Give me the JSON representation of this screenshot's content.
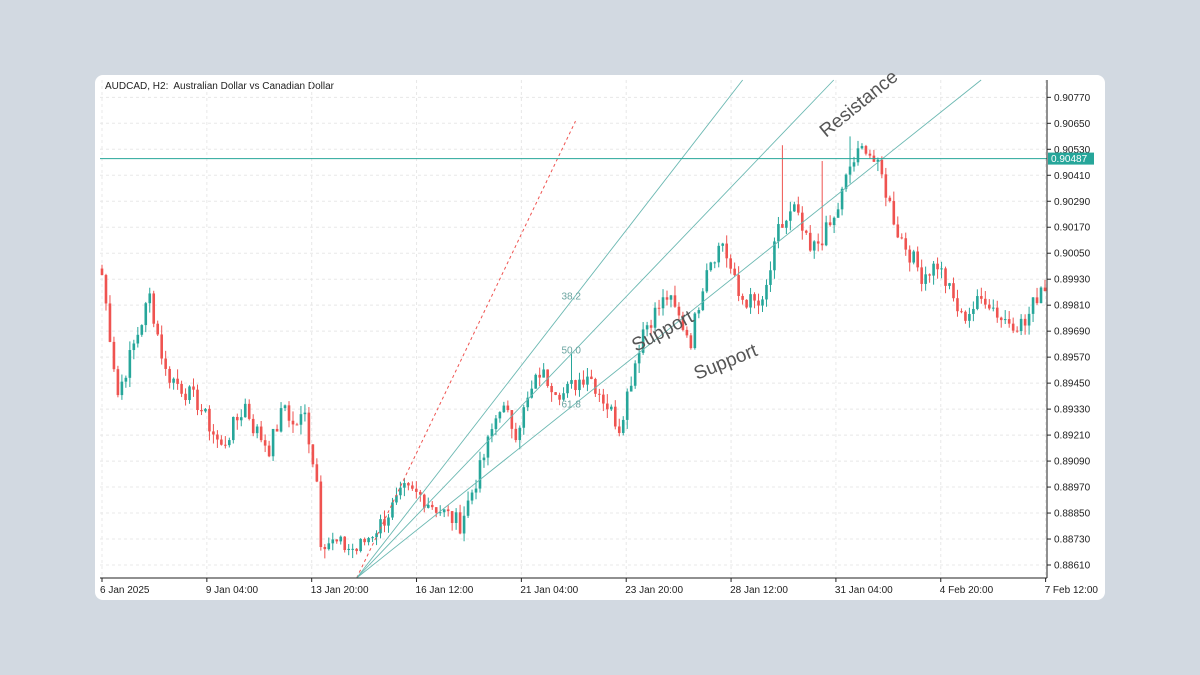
{
  "header": {
    "title": "AUDCAD, H2:  Australian Dollar vs Canadian Dollar"
  },
  "colors": {
    "up": "#26a69a",
    "down": "#ef5350",
    "line": "#6bb8b2",
    "grid": "#e8e8e8",
    "fan_guide": "#ef5350",
    "price_tag": "#26a69a"
  },
  "chart_data": {
    "type": "candlestick",
    "symbol": "AUDCAD",
    "timeframe": "H2",
    "title": "AUDCAD, H2:  Australian Dollar vs Canadian Dollar",
    "ylim": [
      0.8855,
      0.9085
    ],
    "y_ticks": [
      "0.90770",
      "0.90650",
      "0.90530",
      "0.90410",
      "0.90290",
      "0.90170",
      "0.90050",
      "0.89930",
      "0.89810",
      "0.89690",
      "0.89570",
      "0.89450",
      "0.89330",
      "0.89210",
      "0.89090",
      "0.88970",
      "0.88850",
      "0.88730",
      "0.88610"
    ],
    "x_ticks": [
      "6 Jan 2025",
      "9 Jan 04:00",
      "13 Jan 20:00",
      "16 Jan 12:00",
      "21 Jan 04:00",
      "23 Jan 20:00",
      "28 Jan 12:00",
      "31 Jan 04:00",
      "4 Feb 20:00",
      "7 Feb 12:00"
    ],
    "current_price": "0.90487",
    "bars": 238,
    "anchors": [
      [
        0,
        0.8995
      ],
      [
        4,
        0.894
      ],
      [
        12,
        0.8985
      ],
      [
        16,
        0.895
      ],
      [
        24,
        0.8936
      ],
      [
        30,
        0.8915
      ],
      [
        36,
        0.8935
      ],
      [
        38,
        0.8925
      ],
      [
        42,
        0.8915
      ],
      [
        46,
        0.8935
      ],
      [
        48,
        0.8925
      ],
      [
        51,
        0.893
      ],
      [
        54,
        0.89
      ],
      [
        55,
        0.8873
      ],
      [
        60,
        0.887
      ],
      [
        64,
        0.8868
      ],
      [
        70,
        0.888
      ],
      [
        76,
        0.8895
      ],
      [
        80,
        0.8893
      ],
      [
        86,
        0.8885
      ],
      [
        90,
        0.888
      ],
      [
        95,
        0.8905
      ],
      [
        100,
        0.8935
      ],
      [
        104,
        0.8923
      ],
      [
        110,
        0.895
      ],
      [
        116,
        0.894
      ],
      [
        122,
        0.895
      ],
      [
        126,
        0.8938
      ],
      [
        130,
        0.8925
      ],
      [
        136,
        0.897
      ],
      [
        142,
        0.8985
      ],
      [
        148,
        0.8965
      ],
      [
        152,
        0.9
      ],
      [
        156,
        0.901
      ],
      [
        160,
        0.8985
      ],
      [
        166,
        0.898
      ],
      [
        170,
        0.9015
      ],
      [
        174,
        0.9025
      ],
      [
        178,
        0.9005
      ],
      [
        184,
        0.902
      ],
      [
        188,
        0.9045
      ],
      [
        192,
        0.9055
      ],
      [
        196,
        0.904
      ],
      [
        200,
        0.9015
      ],
      [
        206,
        0.8995
      ],
      [
        210,
        0.9
      ],
      [
        216,
        0.8975
      ],
      [
        222,
        0.8985
      ],
      [
        226,
        0.8975
      ],
      [
        232,
        0.8972
      ],
      [
        236,
        0.899
      ]
    ],
    "fan": {
      "levels": [
        "38.2",
        "50.0",
        "61.8"
      ],
      "annotations": [
        "Resistance",
        "Support",
        "Support"
      ]
    }
  }
}
